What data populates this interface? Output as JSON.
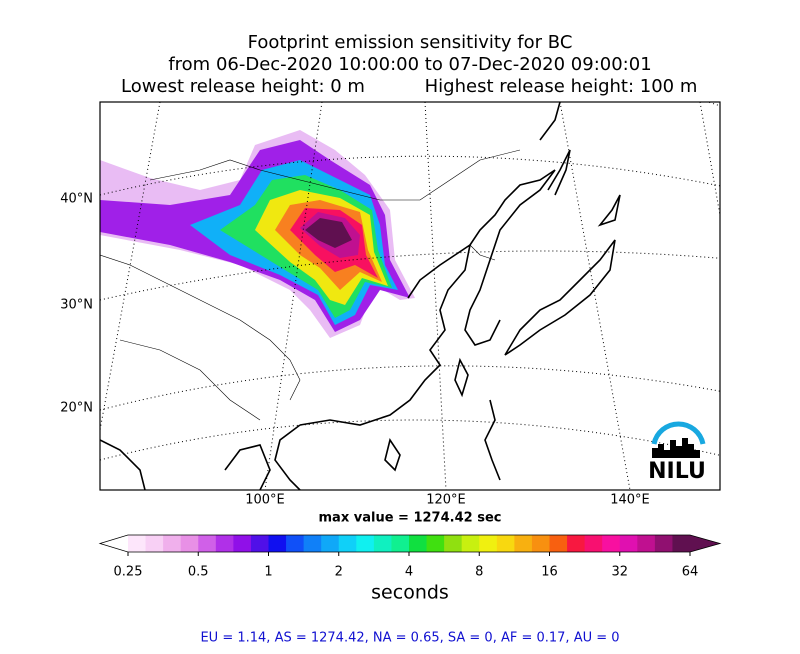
{
  "header": {
    "title": "Footprint emission sensitivity for BC",
    "period": "from 06-Dec-2020 10:00:00 to 07-Dec-2020 09:00:01",
    "lowest": "Lowest release height: 0 m",
    "highest": "Highest release height: 100 m"
  },
  "map": {
    "lat_labels": [
      "40°N",
      "30°N",
      "20°N"
    ],
    "lon_labels": [
      "100°E",
      "120°E",
      "140°E"
    ],
    "max_value": "max value = 1274.42 sec",
    "logo": "NILU"
  },
  "colorbar": {
    "ticks": [
      0.25,
      0.5,
      1,
      2,
      4,
      8,
      16,
      32,
      64
    ],
    "label": "seconds",
    "colors": [
      "#fde6fb",
      "#f8d0f5",
      "#f0b0ec",
      "#e890e6",
      "#d060e8",
      "#b030e8",
      "#9010e8",
      "#5010e8",
      "#1010f0",
      "#1050f8",
      "#1080f8",
      "#10a8f8",
      "#10d0f8",
      "#10f0f0",
      "#10f0c0",
      "#10f090",
      "#10e040",
      "#40e010",
      "#90e010",
      "#c8f010",
      "#f0f010",
      "#f8d810",
      "#f8b010",
      "#f89010",
      "#f86010",
      "#f81840",
      "#f81070",
      "#f810a0",
      "#e010b0",
      "#c01090",
      "#901070",
      "#601050"
    ]
  },
  "footer": "EU = 1.14,  AS = 1274.42,  NA = 0.65,  SA = 0,  AF = 0.17,  AU = 0"
}
